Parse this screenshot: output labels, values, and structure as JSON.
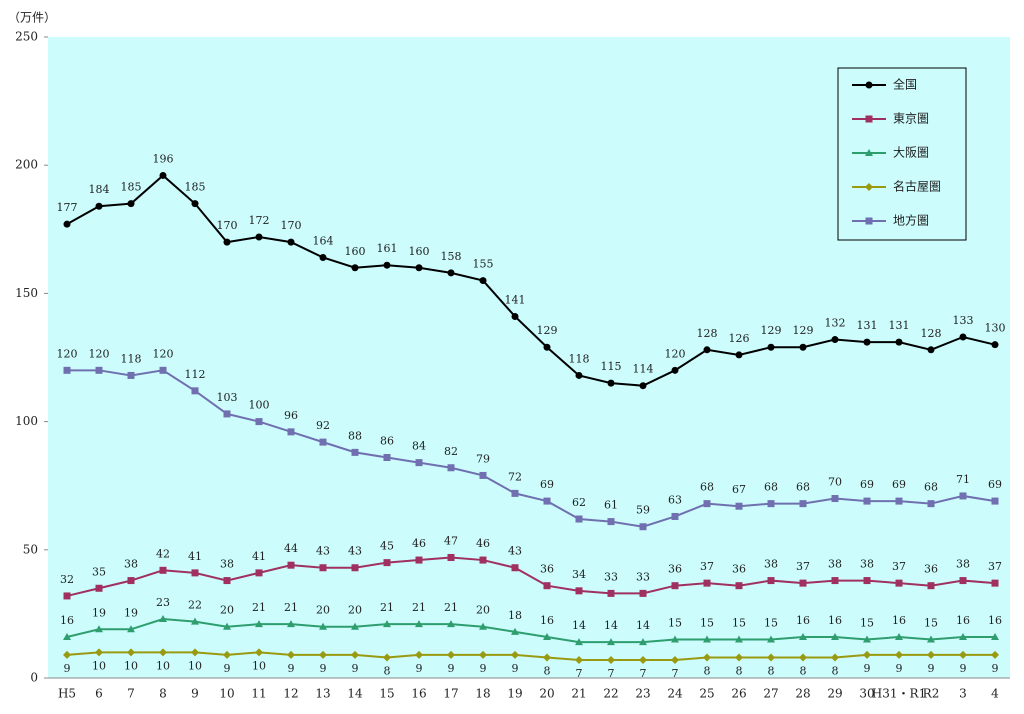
{
  "chart_data": {
    "type": "line",
    "y_label": "（万件）",
    "categories": [
      "H5",
      "6",
      "7",
      "8",
      "9",
      "10",
      "11",
      "12",
      "13",
      "14",
      "15",
      "16",
      "17",
      "18",
      "19",
      "20",
      "21",
      "22",
      "23",
      "24",
      "25",
      "26",
      "27",
      "28",
      "29",
      "30",
      "H31・R1",
      "R2",
      "3",
      "4"
    ],
    "series": [
      {
        "name": "全国",
        "color": "#000000",
        "marker": "circle",
        "label_pos": "above",
        "values": [
          177,
          184,
          185,
          196,
          185,
          170,
          172,
          170,
          164,
          160,
          161,
          160,
          158,
          155,
          141,
          129,
          118,
          115,
          114,
          120,
          128,
          126,
          129,
          129,
          132,
          131,
          131,
          128,
          133,
          130
        ]
      },
      {
        "name": "東京圏",
        "color": "#a0305f",
        "marker": "square",
        "label_pos": "above",
        "values": [
          32,
          35,
          38,
          42,
          41,
          38,
          41,
          44,
          43,
          43,
          45,
          46,
          47,
          46,
          43,
          36,
          34,
          33,
          33,
          36,
          37,
          36,
          38,
          37,
          38,
          38,
          37,
          36,
          38,
          37
        ]
      },
      {
        "name": "大阪圏",
        "color": "#2e9e6e",
        "marker": "triangle",
        "label_pos": "above",
        "values": [
          16,
          19,
          19,
          23,
          22,
          20,
          21,
          21,
          20,
          20,
          21,
          21,
          21,
          20,
          18,
          16,
          14,
          14,
          14,
          15,
          15,
          15,
          15,
          16,
          16,
          15,
          16,
          15,
          16,
          16
        ]
      },
      {
        "name": "名古屋圏",
        "color": "#9a9a10",
        "marker": "diamond",
        "label_pos": "below",
        "values": [
          9,
          10,
          10,
          10,
          10,
          9,
          10,
          9,
          9,
          9,
          8,
          9,
          9,
          9,
          9,
          8,
          7,
          7,
          7,
          7,
          8,
          8,
          8,
          8,
          8,
          9,
          9,
          9,
          9,
          9
        ]
      },
      {
        "name": "地方圏",
        "color": "#7070b0",
        "marker": "square",
        "label_pos": "above",
        "values": [
          120,
          120,
          118,
          120,
          112,
          103,
          100,
          96,
          92,
          88,
          86,
          84,
          82,
          79,
          72,
          69,
          62,
          61,
          59,
          63,
          68,
          67,
          68,
          68,
          70,
          69,
          69,
          68,
          71,
          69
        ]
      }
    ],
    "ylim": [
      0,
      250
    ],
    "yticks": [
      0,
      50,
      100,
      150,
      200,
      250
    ],
    "background": "#ccfcfc"
  }
}
